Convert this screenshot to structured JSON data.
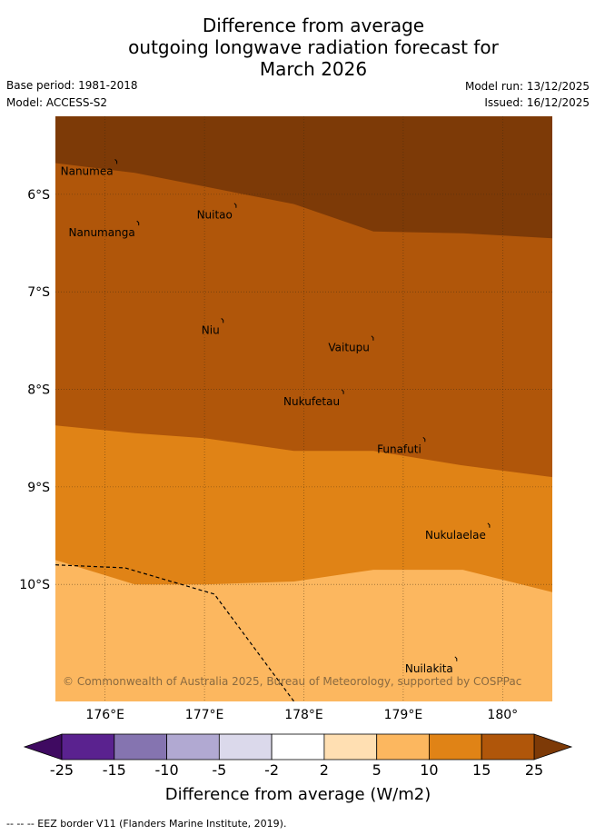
{
  "title": {
    "line1": "Difference from average",
    "line2": "outgoing longwave radiation forecast for",
    "line3": "March 2026"
  },
  "meta": {
    "base_period": "Base period: 1981-2018",
    "model": "Model: ACCESS-S2",
    "model_run": "Model run: 13/12/2025",
    "issued": "Issued: 16/12/2025"
  },
  "map": {
    "lon_range": [
      175.5,
      180.5
    ],
    "lat_range": [
      -11.2,
      -5.2
    ],
    "lon_ticks": [
      {
        "value": 176,
        "label": "176°E"
      },
      {
        "value": 177,
        "label": "177°E"
      },
      {
        "value": 178,
        "label": "178°E"
      },
      {
        "value": 179,
        "label": "179°E"
      },
      {
        "value": 180,
        "label": "180°"
      }
    ],
    "lat_ticks": [
      {
        "value": -6,
        "label": "6°S"
      },
      {
        "value": -7,
        "label": "7°S"
      },
      {
        "value": -8,
        "label": "8°S"
      },
      {
        "value": -9,
        "label": "9°S"
      },
      {
        "value": -10,
        "label": "10°S"
      }
    ],
    "bands": [
      {
        "range": "15 to 25",
        "color": "#b0560a",
        "upper_boundary": [
          [
            175.5,
            -5.68
          ],
          [
            176.3,
            -5.78
          ],
          [
            177.0,
            -5.92
          ],
          [
            177.9,
            -6.1
          ],
          [
            178.7,
            -6.38
          ],
          [
            179.6,
            -6.4
          ],
          [
            180.5,
            -6.45
          ]
        ]
      },
      {
        "range": "10 to 15",
        "color": "#e08316",
        "upper_boundary": [
          [
            175.5,
            -8.37
          ],
          [
            176.3,
            -8.45
          ],
          [
            177.0,
            -8.5
          ],
          [
            177.9,
            -8.63
          ],
          [
            178.7,
            -8.63
          ],
          [
            179.6,
            -8.78
          ],
          [
            180.5,
            -8.9
          ]
        ]
      },
      {
        "range": "5 to 10",
        "color": "#fcb75f",
        "upper_boundary": [
          [
            175.5,
            -9.75
          ],
          [
            176.3,
            -10.0
          ],
          [
            177.0,
            -10.0
          ],
          [
            177.9,
            -9.97
          ],
          [
            178.7,
            -9.85
          ],
          [
            179.6,
            -9.85
          ],
          [
            180.5,
            -10.08
          ]
        ]
      }
    ],
    "top_band": {
      "range": "above 25",
      "color": "#7d3a07"
    },
    "eez_border": [
      [
        175.5,
        -9.8
      ],
      [
        176.2,
        -9.83
      ],
      [
        177.1,
        -10.1
      ],
      [
        177.9,
        -11.2
      ]
    ],
    "islands": [
      {
        "name": "Nanumea",
        "lon": 176.1,
        "lat": -5.67
      },
      {
        "name": "Nuitao",
        "lon": 177.3,
        "lat": -6.12
      },
      {
        "name": "Nanumanga",
        "lon": 176.32,
        "lat": -6.3
      },
      {
        "name": "Niu",
        "lon": 177.17,
        "lat": -7.3
      },
      {
        "name": "Vaitupu",
        "lon": 178.68,
        "lat": -7.48
      },
      {
        "name": "Nukufetau",
        "lon": 178.38,
        "lat": -8.03
      },
      {
        "name": "Funafuti",
        "lon": 179.2,
        "lat": -8.52
      },
      {
        "name": "Nukulaelae",
        "lon": 179.85,
        "lat": -9.4
      },
      {
        "name": "Nuilakita",
        "lon": 179.52,
        "lat": -10.77
      }
    ],
    "copyright": "© Commonwealth of Australia 2025, Bureau of Meteorology, supported by COSPPac"
  },
  "legend": {
    "title": "Difference from average (W/m2)",
    "ticks": [
      "-25",
      "-15",
      "-10",
      "-5",
      "-2",
      "2",
      "5",
      "10",
      "15",
      "25"
    ],
    "colors": [
      "#5a228f",
      "#8574b0",
      "#b1a9d2",
      "#dbd9eb",
      "#ffffff",
      "#ffdfb2",
      "#fcb75f",
      "#e08316",
      "#b0560a"
    ],
    "under_color": "#3f0a61",
    "over_color": "#7d3a07"
  },
  "footer": "--  --  -- EEZ border V11 (Flanders Marine Institute, 2019)."
}
